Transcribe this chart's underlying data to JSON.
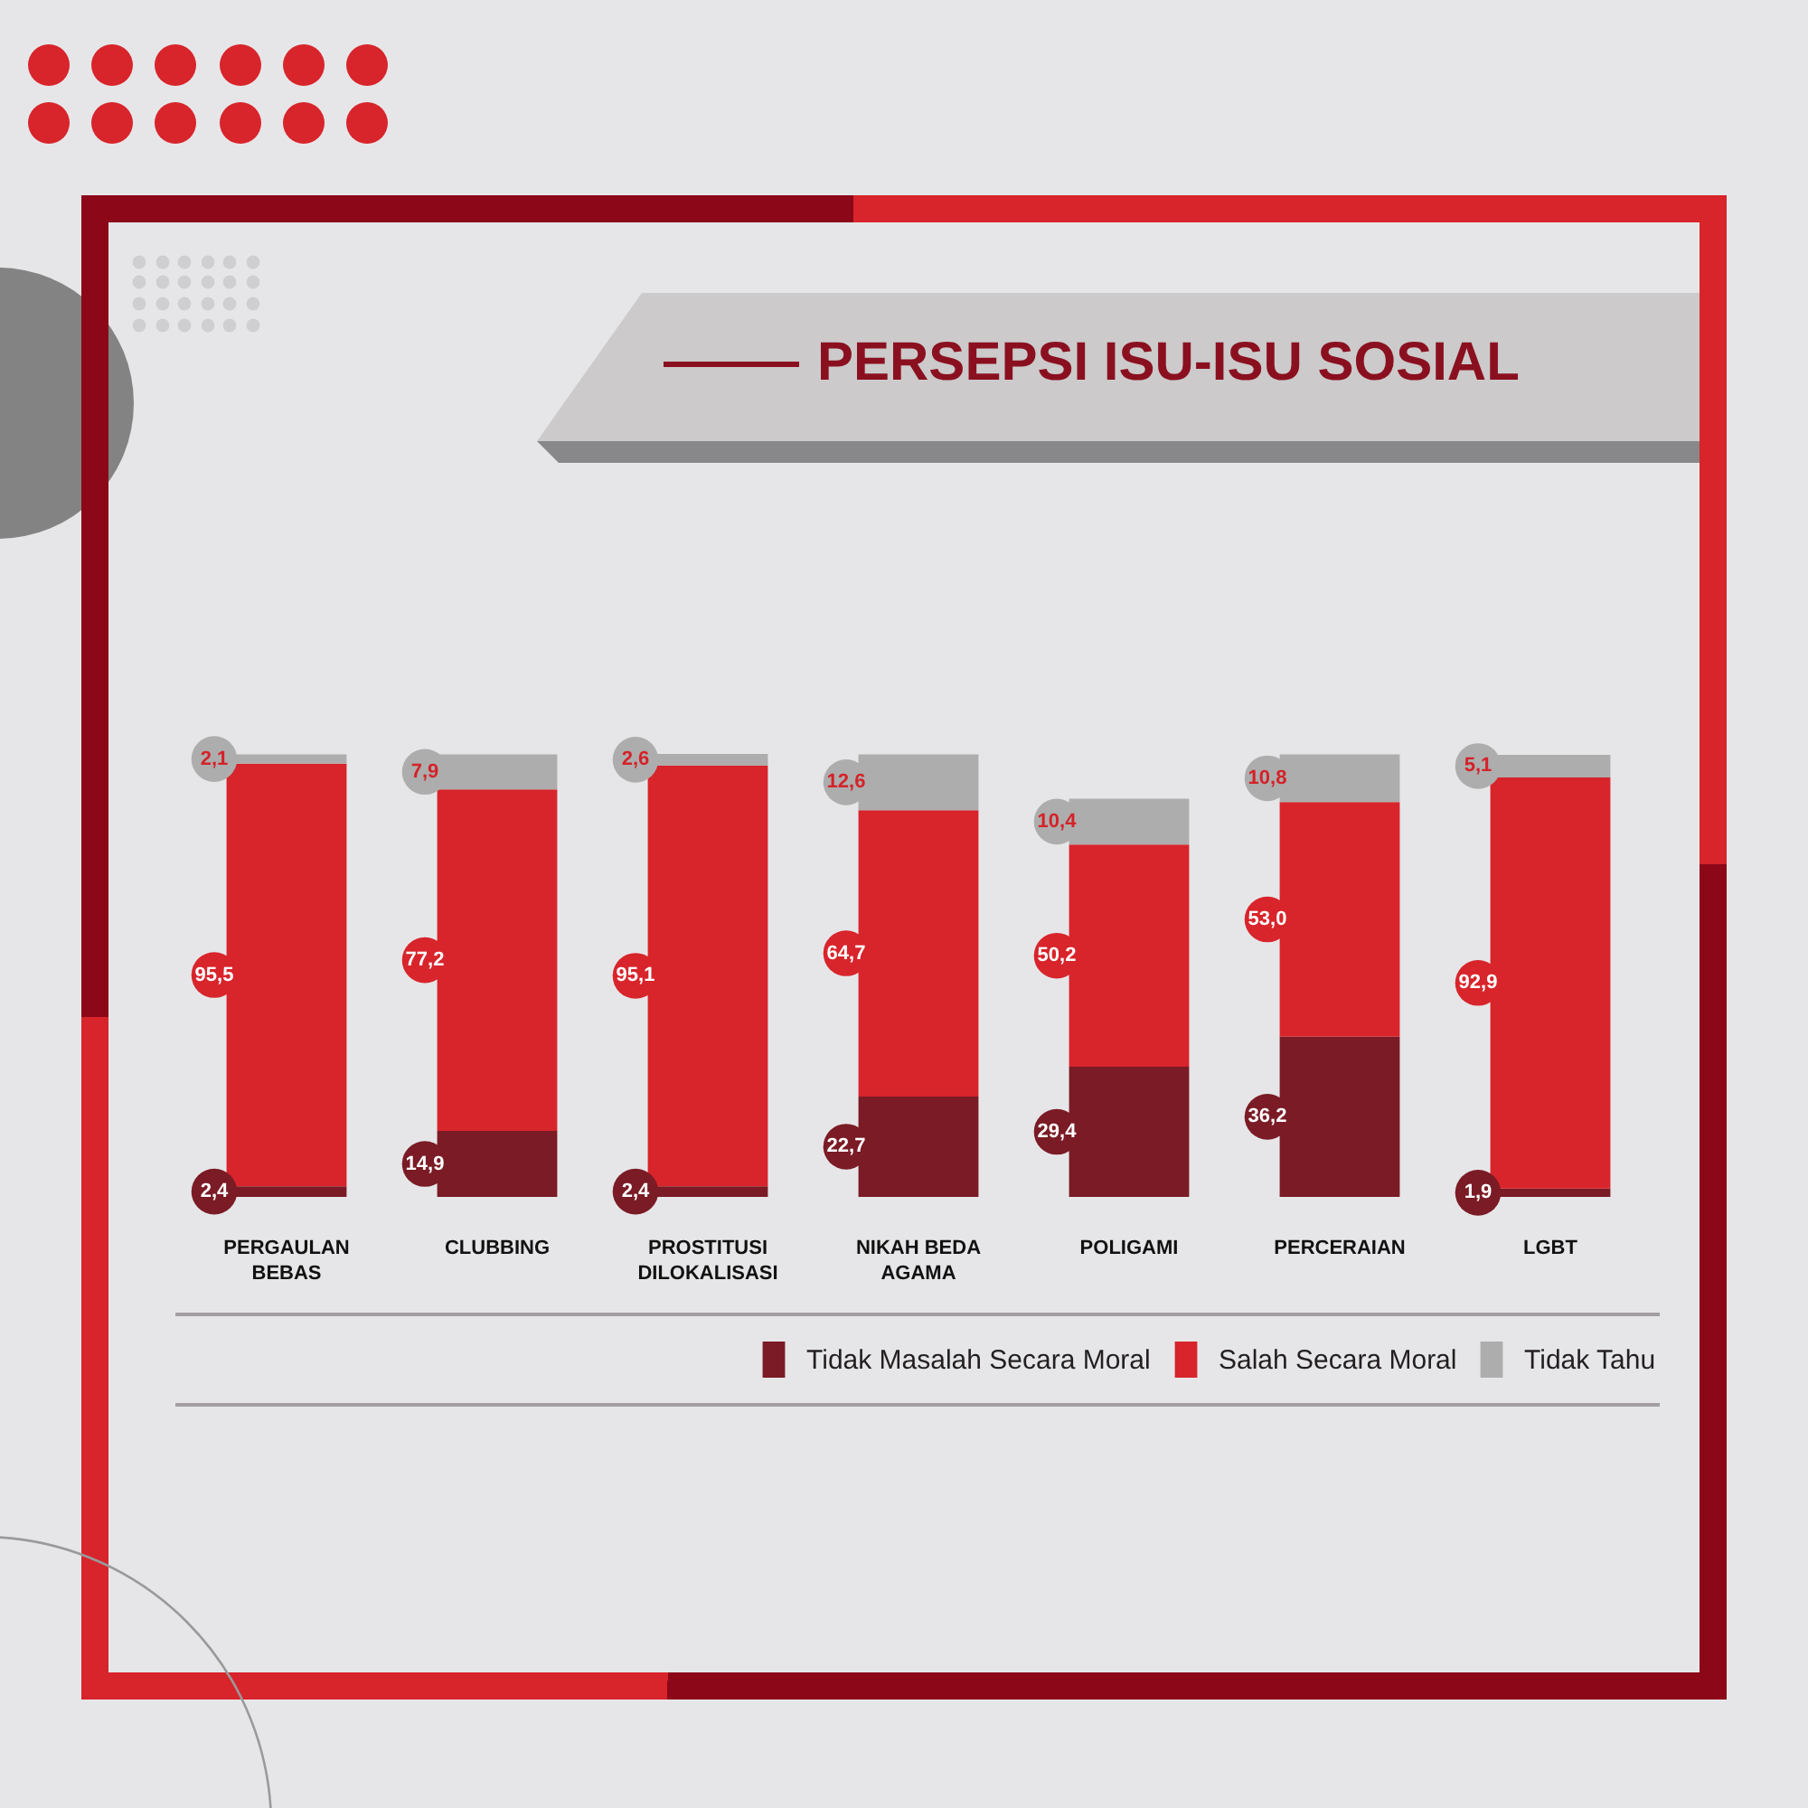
{
  "chart_data": {
    "type": "bar",
    "title": "PERSEPSI ISU-ISU SOSIAL",
    "categories": [
      "PERGAULAN BEBAS",
      "CLUBBING",
      "PROSTITUSI DILOKALISASI",
      "NIKAH BEDA AGAMA",
      "POLIGAMI",
      "PERCERAIAN",
      "LGBT"
    ],
    "stacked": true,
    "legend": "bottom",
    "series": [
      {
        "name": "Tidak Masalah Secara Moral",
        "color": "#7a1b25",
        "values": [
          2.4,
          14.9,
          2.4,
          22.7,
          29.4,
          36.2,
          1.9
        ],
        "value_labels": [
          "2,4",
          "14,9",
          "2,4",
          "22,7",
          "29,4",
          "36,2",
          "1,9"
        ]
      },
      {
        "name": "Salah Secara Moral",
        "color": "#d8242b",
        "values": [
          95.5,
          77.2,
          95.1,
          64.7,
          50.2,
          53.0,
          92.9
        ],
        "value_labels": [
          "95,5",
          "77,2",
          "95,1",
          "64,7",
          "50,2",
          "53,0",
          "92,9"
        ]
      },
      {
        "name": "Tidak Tahu",
        "color": "#adadad",
        "values": [
          2.1,
          7.9,
          2.6,
          12.6,
          10.4,
          10.8,
          5.1
        ],
        "value_labels": [
          "2,1",
          "7,9",
          "2,6",
          "12,6",
          "10,4",
          "10,8",
          "5,1"
        ]
      }
    ]
  }
}
